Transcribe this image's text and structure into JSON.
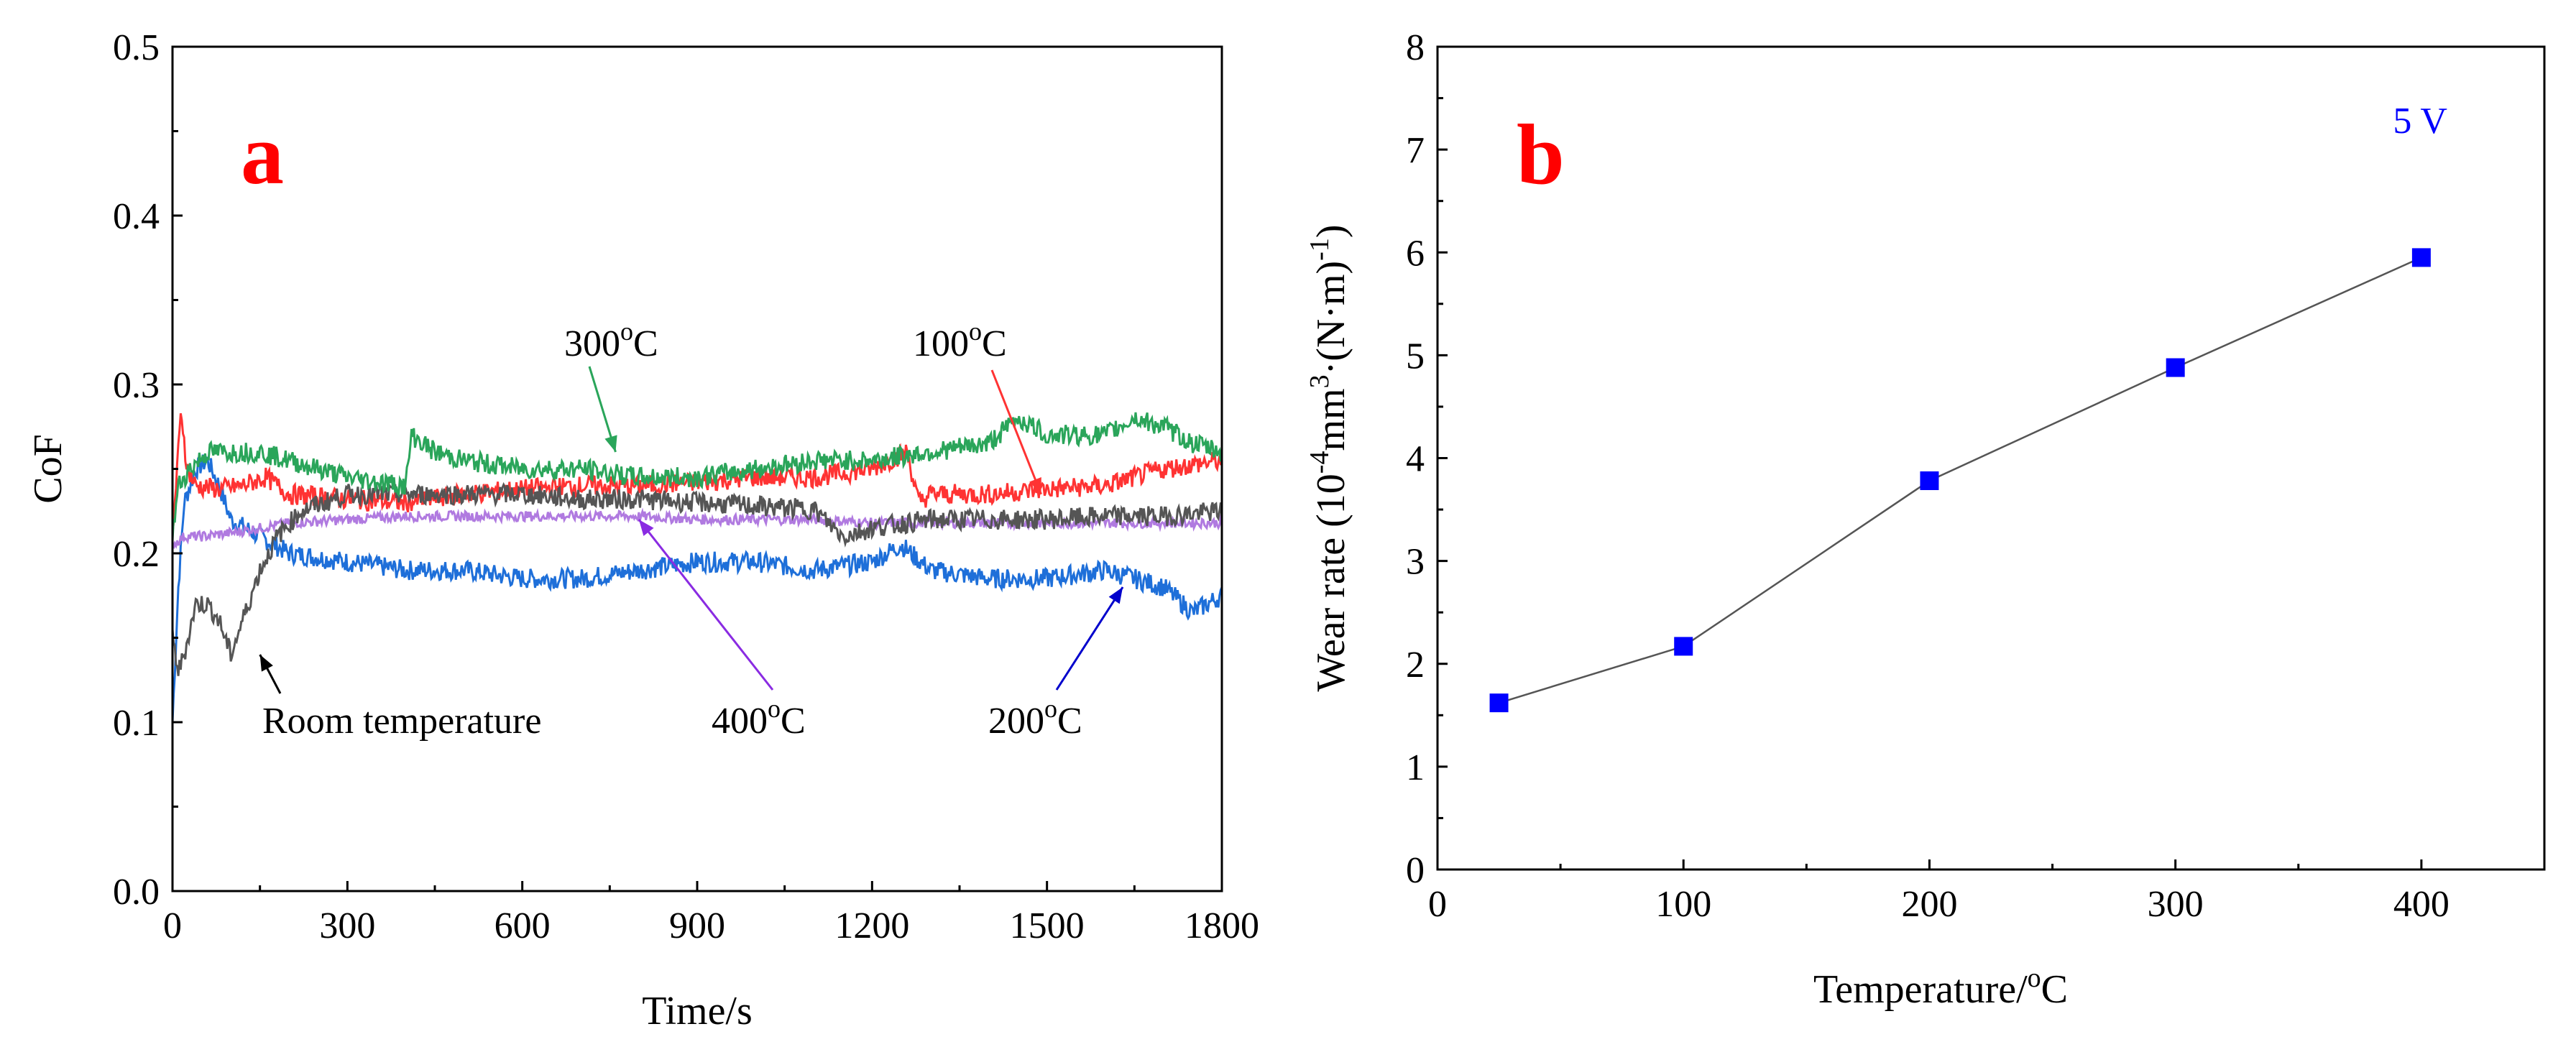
{
  "chart_data": [
    {
      "type": "line",
      "panel": "a",
      "xlabel": "Time/s",
      "ylabel": "CoF",
      "xlim": [
        0,
        1800
      ],
      "ylim": [
        0.0,
        0.5
      ],
      "xticks": [
        0,
        300,
        600,
        900,
        1200,
        1500,
        1800
      ],
      "yticks": [
        "0.0",
        "0.1",
        "0.2",
        "0.3",
        "0.4",
        "0.5"
      ],
      "series": [
        {
          "name": "Room temperature",
          "color": "#555555",
          "x": [
            0,
            10,
            20,
            40,
            60,
            80,
            100,
            120,
            150,
            180,
            220,
            260,
            300,
            400,
            500,
            600,
            700,
            800,
            900,
            1000,
            1100,
            1150,
            1200,
            1300,
            1400,
            1500,
            1600,
            1700,
            1800
          ],
          "y": [
            0.15,
            0.13,
            0.14,
            0.17,
            0.17,
            0.16,
            0.14,
            0.16,
            0.19,
            0.21,
            0.225,
            0.23,
            0.235,
            0.235,
            0.235,
            0.235,
            0.232,
            0.232,
            0.23,
            0.228,
            0.226,
            0.21,
            0.215,
            0.22,
            0.22,
            0.22,
            0.222,
            0.222,
            0.225
          ]
        },
        {
          "name": "100oC",
          "color": "#ff3333",
          "x": [
            0,
            10,
            15,
            25,
            40,
            80,
            120,
            160,
            200,
            300,
            400,
            500,
            600,
            700,
            800,
            900,
            1000,
            1100,
            1200,
            1260,
            1280,
            1300,
            1400,
            1500,
            1600,
            1700,
            1800
          ],
          "y": [
            0.21,
            0.26,
            0.285,
            0.25,
            0.24,
            0.238,
            0.24,
            0.245,
            0.235,
            0.232,
            0.23,
            0.235,
            0.238,
            0.24,
            0.24,
            0.242,
            0.245,
            0.245,
            0.25,
            0.26,
            0.23,
            0.235,
            0.235,
            0.238,
            0.24,
            0.25,
            0.255
          ]
        },
        {
          "name": "200oC",
          "color": "#1e6fd9",
          "x": [
            0,
            10,
            20,
            40,
            60,
            80,
            100,
            150,
            200,
            300,
            400,
            500,
            600,
            700,
            800,
            900,
            1000,
            1100,
            1200,
            1250,
            1300,
            1400,
            1500,
            1600,
            1700,
            1750,
            1800
          ],
          "y": [
            0.1,
            0.18,
            0.23,
            0.25,
            0.255,
            0.24,
            0.22,
            0.21,
            0.2,
            0.195,
            0.19,
            0.19,
            0.185,
            0.185,
            0.19,
            0.195,
            0.195,
            0.19,
            0.195,
            0.205,
            0.19,
            0.185,
            0.185,
            0.19,
            0.18,
            0.165,
            0.175
          ]
        },
        {
          "name": "300oC",
          "color": "#2aa55a",
          "x": [
            0,
            10,
            30,
            60,
            100,
            150,
            200,
            300,
            400,
            410,
            450,
            500,
            600,
            700,
            800,
            900,
            1000,
            1100,
            1200,
            1300,
            1400,
            1450,
            1500,
            1600,
            1650,
            1700,
            1750,
            1800
          ],
          "y": [
            0.21,
            0.24,
            0.25,
            0.26,
            0.26,
            0.26,
            0.255,
            0.245,
            0.24,
            0.27,
            0.26,
            0.255,
            0.25,
            0.25,
            0.245,
            0.245,
            0.25,
            0.255,
            0.255,
            0.26,
            0.265,
            0.28,
            0.27,
            0.27,
            0.28,
            0.275,
            0.265,
            0.26
          ]
        },
        {
          "name": "400oC",
          "color": "#b07ae0",
          "x": [
            0,
            20,
            50,
            100,
            150,
            200,
            300,
            400,
            500,
            600,
            700,
            800,
            900,
            1000,
            1100,
            1200,
            1300,
            1400,
            1500,
            1600,
            1700,
            1800
          ],
          "y": [
            0.205,
            0.21,
            0.21,
            0.212,
            0.215,
            0.218,
            0.22,
            0.222,
            0.222,
            0.222,
            0.222,
            0.222,
            0.22,
            0.22,
            0.22,
            0.218,
            0.218,
            0.218,
            0.218,
            0.218,
            0.218,
            0.218
          ]
        }
      ],
      "annotations": [
        {
          "text": "300",
          "sup": "o",
          "unit": "C",
          "target_x": 760,
          "target_y": 0.26
        },
        {
          "text": "100",
          "sup": "o",
          "unit": "C",
          "target_x": 1490,
          "target_y": 0.235
        },
        {
          "text": "Room temperature",
          "target_x": 150,
          "target_y": 0.14
        },
        {
          "text": "400",
          "sup": "o",
          "unit": "C",
          "target_x": 800,
          "target_y": 0.22
        },
        {
          "text": "200",
          "sup": "o",
          "unit": "C",
          "target_x": 1630,
          "target_y": 0.18
        }
      ]
    },
    {
      "type": "line",
      "panel": "b",
      "title": "5 V",
      "xlabel_main": "Temperature/",
      "xlabel_sup": "o",
      "xlabel_unit": "C",
      "ylabel_parts": [
        "Wear rate (10",
        "-4",
        "mm",
        "3",
        "·(N·m)",
        "-1",
        ")"
      ],
      "xlim": [
        0,
        450
      ],
      "ylim": [
        0,
        8
      ],
      "xticks": [
        0,
        100,
        200,
        300,
        400
      ],
      "yticks": [
        0,
        1,
        2,
        3,
        4,
        5,
        6,
        7,
        8
      ],
      "marker_color": "#0000ff",
      "line_color": "#555555",
      "x": [
        25,
        100,
        200,
        300,
        400
      ],
      "y": [
        1.62,
        2.17,
        3.78,
        4.88,
        5.95
      ]
    }
  ]
}
